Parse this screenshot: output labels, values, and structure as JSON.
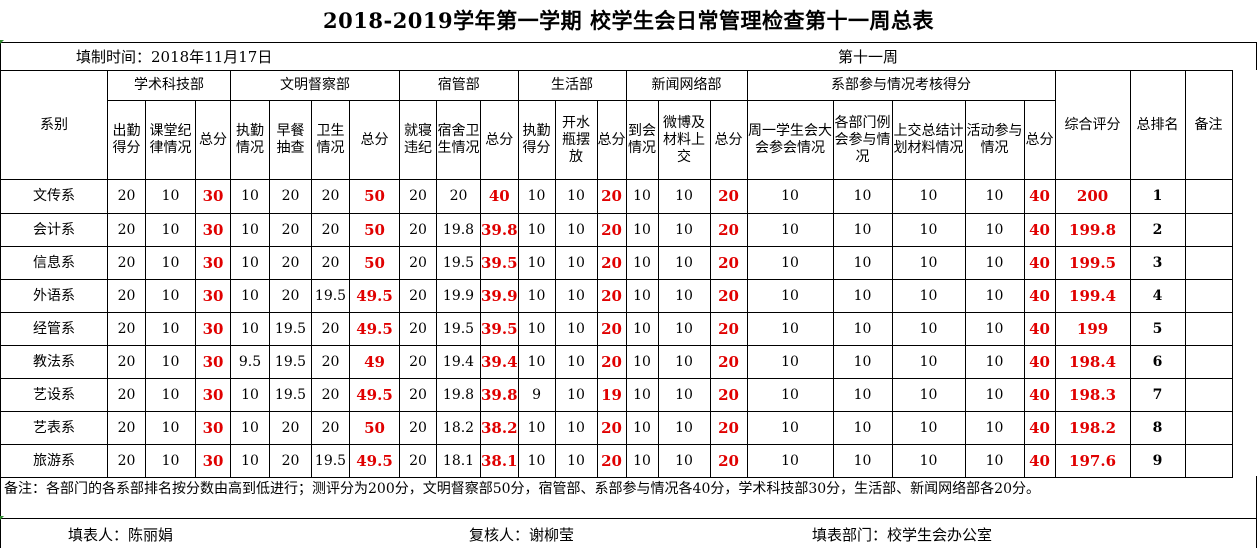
{
  "title": "2018-2019学年第一学期  校学生会日常管理检查第十一周总表",
  "fill_time": "填制时间：2018年11月17日",
  "week": "第十一周",
  "groups": {
    "academic": "学术科技部",
    "civility": "文明督察部",
    "dorm": "宿管部",
    "life": "生活部",
    "network": "新闻网络部",
    "participation": "系部参与情况考核得分"
  },
  "columns": {
    "dept": "系别",
    "attendance_score": "出勤得分",
    "class_discipline": "课堂纪律情况",
    "academic_total": "总分",
    "duty": "执勤情况",
    "breakfast_check": "早餐抽查",
    "hygiene": "卫生情况",
    "civility_total": "总分",
    "bedtime": "就寝违纪",
    "dorm_hygiene": "宿舍卫生情况",
    "dorm_total": "总分",
    "life_duty": "执勤得分",
    "water_bottle": "开水瓶摆放",
    "life_total": "总分",
    "arrival": "到会情况",
    "weibo": "微博及材料上交",
    "network_total": "总分",
    "weekly_meeting": "周一学生会大会参会情况",
    "dept_meeting": "各部门例会参与情况",
    "plan_submit": "上交总结计划材料情况",
    "activity": "活动参与情况",
    "part_total": "总分",
    "overall": "综合评分",
    "rank": "总排名",
    "remark": "备注"
  },
  "rows": [
    {
      "dept": "文传系",
      "v": [
        "20",
        "10",
        "30",
        "10",
        "20",
        "20",
        "50",
        "20",
        "20",
        "40",
        "10",
        "10",
        "20",
        "10",
        "10",
        "20",
        "10",
        "10",
        "10",
        "10",
        "40"
      ],
      "overall": "200",
      "rank": "1"
    },
    {
      "dept": "会计系",
      "v": [
        "20",
        "10",
        "30",
        "10",
        "20",
        "20",
        "50",
        "20",
        "19.8",
        "39.8",
        "10",
        "10",
        "20",
        "10",
        "10",
        "20",
        "10",
        "10",
        "10",
        "10",
        "40"
      ],
      "overall": "199.8",
      "rank": "2"
    },
    {
      "dept": "信息系",
      "v": [
        "20",
        "10",
        "30",
        "10",
        "20",
        "20",
        "50",
        "20",
        "19.5",
        "39.5",
        "10",
        "10",
        "20",
        "10",
        "10",
        "20",
        "10",
        "10",
        "10",
        "10",
        "40"
      ],
      "overall": "199.5",
      "rank": "3"
    },
    {
      "dept": "外语系",
      "v": [
        "20",
        "10",
        "30",
        "10",
        "20",
        "19.5",
        "49.5",
        "20",
        "19.9",
        "39.9",
        "10",
        "10",
        "20",
        "10",
        "10",
        "20",
        "10",
        "10",
        "10",
        "10",
        "40"
      ],
      "overall": "199.4",
      "rank": "4"
    },
    {
      "dept": "经管系",
      "v": [
        "20",
        "10",
        "30",
        "10",
        "19.5",
        "20",
        "49.5",
        "20",
        "19.5",
        "39.5",
        "10",
        "10",
        "20",
        "10",
        "10",
        "20",
        "10",
        "10",
        "10",
        "10",
        "40"
      ],
      "overall": "199",
      "rank": "5"
    },
    {
      "dept": "教法系",
      "v": [
        "20",
        "10",
        "30",
        "9.5",
        "19.5",
        "20",
        "49",
        "20",
        "19.4",
        "39.4",
        "10",
        "10",
        "20",
        "10",
        "10",
        "20",
        "10",
        "10",
        "10",
        "10",
        "40"
      ],
      "overall": "198.4",
      "rank": "6"
    },
    {
      "dept": "艺设系",
      "v": [
        "20",
        "10",
        "30",
        "10",
        "19.5",
        "20",
        "49.5",
        "20",
        "19.8",
        "39.8",
        "9",
        "10",
        "19",
        "10",
        "10",
        "20",
        "10",
        "10",
        "10",
        "10",
        "40"
      ],
      "overall": "198.3",
      "rank": "7"
    },
    {
      "dept": "艺表系",
      "v": [
        "20",
        "10",
        "30",
        "10",
        "20",
        "20",
        "50",
        "20",
        "18.2",
        "38.2",
        "10",
        "10",
        "20",
        "10",
        "10",
        "20",
        "10",
        "10",
        "10",
        "10",
        "40"
      ],
      "overall": "198.2",
      "rank": "8"
    },
    {
      "dept": "旅游系",
      "v": [
        "20",
        "10",
        "30",
        "10",
        "20",
        "19.5",
        "49.5",
        "20",
        "18.1",
        "38.1",
        "10",
        "10",
        "20",
        "10",
        "10",
        "20",
        "10",
        "10",
        "10",
        "10",
        "40"
      ],
      "overall": "197.6",
      "rank": "9"
    }
  ],
  "note": "备注：各部门的各系部排名按分数由高到低进行；测评分为200分，文明督察部50分，宿管部、系部参与情况各40分，学术科技部30分，生活部、新闻网络部各20分。",
  "footer": {
    "filler": "填表人：陈丽娟",
    "reviewer": "复核人：谢柳莹",
    "filling_dept": "填表部门：校学生会办公室"
  },
  "colors": {
    "total_red": "#e00000",
    "grid_line": "#000000",
    "corner_green": "#2e8b2e"
  }
}
